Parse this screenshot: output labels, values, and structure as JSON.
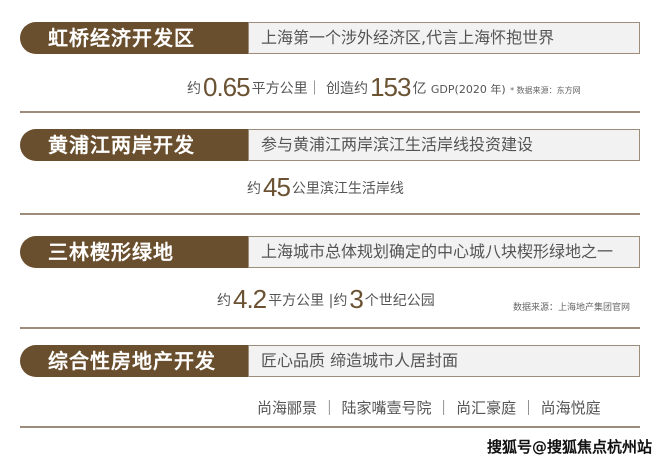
{
  "sections": [
    {
      "title": "虹桥经济开发区",
      "desc": "上海第一个涉外经济区,代言上海怀抱世界",
      "stat": {
        "p1": "约",
        "n1": "0.65",
        "u1": "平方公里｜ 创造约",
        "n2": "153",
        "u2": "亿",
        "gdp": "GDP",
        "year": "(2020 年)",
        "source": "* 数据来源：东方网"
      }
    },
    {
      "title": "黄浦江两岸开发",
      "desc": "参与黄浦江两岸滨江生活岸线投资建设",
      "stat": {
        "p1": "约",
        "n1": "45",
        "u1": "公里滨江生活岸线"
      }
    },
    {
      "title": "三林楔形绿地",
      "desc": "上海城市总体规划确定的中心城八块楔形绿地之一",
      "stat": {
        "p1": "约",
        "n1": "4.2",
        "u1": "平方公里 |约",
        "n2": "3",
        "u2": "个世纪公园",
        "source": "数据来源：上海地产集团官网"
      }
    },
    {
      "title": "综合性房地产开发",
      "desc": "匠心品质 缔造城市人居封面",
      "stat": {
        "projects": "尚海郦景 ｜ 陆家嘴壹号院 ｜ 尚汇豪庭 ｜ 尚海悦庭"
      }
    }
  ],
  "watermark": "搜狐号@搜狐焦点杭州站",
  "colors": {
    "brand": "#6a4f2e",
    "box": "#f2f2f2",
    "border": "#9c8c79"
  }
}
